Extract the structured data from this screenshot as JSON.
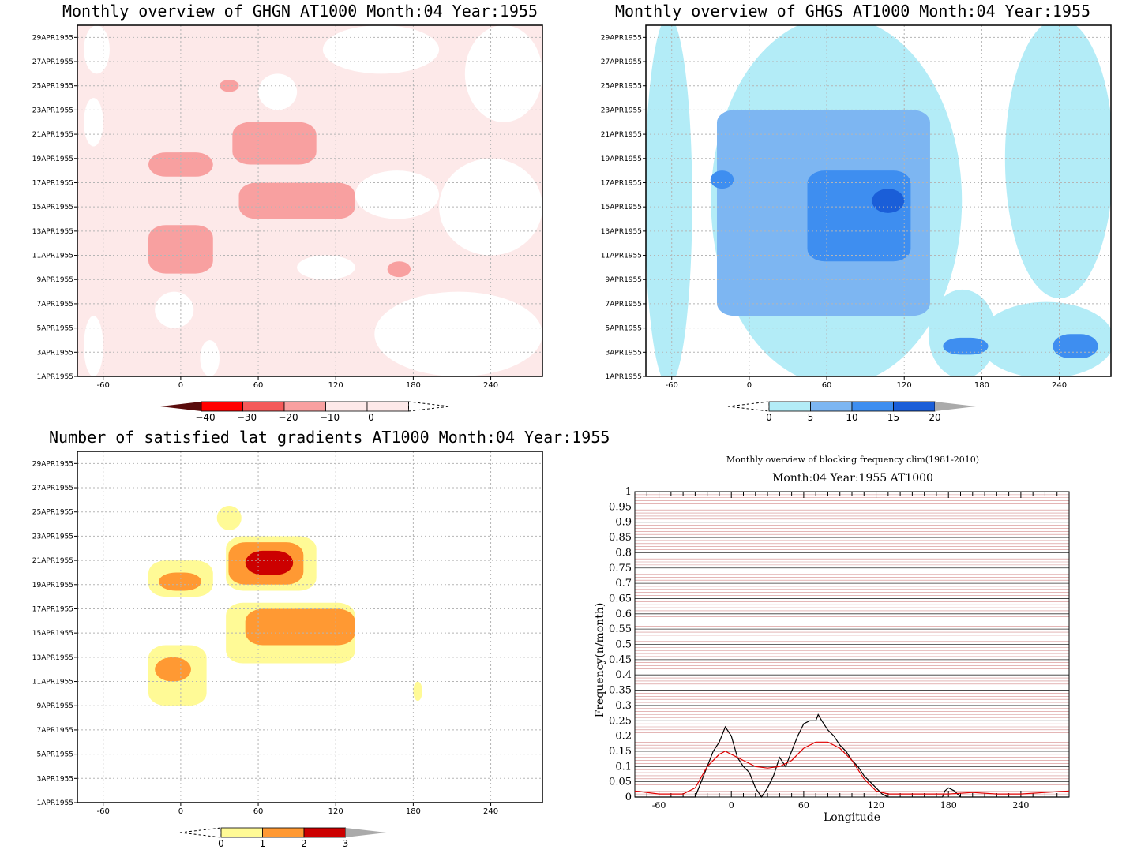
{
  "panels": {
    "ghgn": {
      "title": "Monthly overview of GHGN AT1000 Month:04 Year:1955",
      "colorbar_labels": [
        "−40",
        "−30",
        "−20",
        "−10",
        "0"
      ],
      "colorbar_colors": [
        "#5a0c0c",
        "#ff0000",
        "#f45a5a",
        "#f8a0a0",
        "#fde9e9"
      ]
    },
    "ghgs": {
      "title": "Monthly overview of GHGS AT1000 Month:04 Year:1955",
      "colorbar_labels": [
        "0",
        "5",
        "10",
        "15",
        "20"
      ],
      "colorbar_colors": [
        "#b3ecf7",
        "#7db6f2",
        "#3e8ef0",
        "#1a5ed8",
        "#aaaaaa"
      ]
    },
    "gradients": {
      "title": "Number of satisfied lat gradients AT1000 Month:04 Year:1955",
      "colorbar_labels": [
        "0",
        "1",
        "2",
        "3"
      ],
      "colorbar_colors": [
        "#fffa96",
        "#ff9933",
        "#cc0000",
        "#aaaaaa"
      ]
    },
    "blocking": {
      "title": "Monthly overview of blocking frequency clim(1981-2010)",
      "subtitle": "Month:04 Year:1955  AT1000",
      "xlabel": "Longitude",
      "ylabel": "Frequency(n/month)"
    }
  },
  "map_axes": {
    "y_ticks": [
      "1APR1955",
      "3APR1955",
      "5APR1955",
      "7APR1955",
      "9APR1955",
      "11APR1955",
      "13APR1955",
      "15APR1955",
      "17APR1955",
      "19APR1955",
      "21APR1955",
      "23APR1955",
      "25APR1955",
      "27APR1955",
      "29APR1955"
    ],
    "x_ticks": [
      "-60",
      "0",
      "60",
      "120",
      "180",
      "240"
    ]
  },
  "chart_data": [
    {
      "type": "heatmap",
      "title": "Monthly overview of GHGN AT1000 Month:04 Year:1955",
      "x_ticks": [
        -60,
        0,
        60,
        120,
        180,
        240
      ],
      "y_ticks": [
        "1APR1955",
        "3APR1955",
        "5APR1955",
        "7APR1955",
        "9APR1955",
        "11APR1955",
        "13APR1955",
        "15APR1955",
        "17APR1955",
        "19APR1955",
        "21APR1955",
        "23APR1955",
        "25APR1955",
        "27APR1955",
        "29APR1955"
      ],
      "levels": [
        -40,
        -30,
        -20,
        -10,
        0
      ],
      "colors": [
        "#5a0c0c",
        "#ff0000",
        "#f45a5a",
        "#f8a0a0",
        "#fde9e9"
      ],
      "grid": true,
      "regions": [
        {
          "level": "-10 to 0",
          "lon": [
            -60,
            280
          ],
          "day": [
            1,
            30
          ],
          "note": "light fill over most of domain"
        },
        {
          "level": "-20 to -10",
          "lon": [
            -25,
            25
          ],
          "day": [
            9.5,
            13.5
          ]
        },
        {
          "level": "-20 to -10",
          "lon": [
            -25,
            25
          ],
          "day": [
            17.5,
            19.5
          ]
        },
        {
          "level": "-20 to -10",
          "lon": [
            45,
            135
          ],
          "day": [
            14,
            17
          ]
        },
        {
          "level": "-20 to -10",
          "lon": [
            40,
            105
          ],
          "day": [
            18.5,
            22
          ]
        },
        {
          "level": "-20 to -10",
          "lon": [
            30,
            45
          ],
          "day": [
            24.5,
            25.5
          ]
        },
        {
          "level": "-20 to -10",
          "lon": [
            160,
            178
          ],
          "day": [
            9.2,
            10.5
          ]
        }
      ]
    },
    {
      "type": "heatmap",
      "title": "Monthly overview of GHGS AT1000 Month:04 Year:1955",
      "x_ticks": [
        -60,
        0,
        60,
        120,
        180,
        240
      ],
      "y_ticks": [
        "1APR1955",
        "3APR1955",
        "5APR1955",
        "7APR1955",
        "9APR1955",
        "11APR1955",
        "13APR1955",
        "15APR1955",
        "17APR1955",
        "19APR1955",
        "21APR1955",
        "23APR1955",
        "25APR1955",
        "27APR1955",
        "29APR1955"
      ],
      "levels": [
        0,
        5,
        10,
        15,
        20
      ],
      "colors": [
        "#b3ecf7",
        "#7db6f2",
        "#3e8ef0",
        "#1a5ed8",
        "#aaaaaa"
      ],
      "grid": true,
      "regions": [
        {
          "level": "5 to 10",
          "lon": [
            -25,
            140
          ],
          "day": [
            6,
            23
          ]
        },
        {
          "level": "10 to 15",
          "lon": [
            45,
            125
          ],
          "day": [
            10.5,
            18
          ]
        },
        {
          "level": "15 to 20",
          "lon": [
            95,
            120
          ],
          "day": [
            14.5,
            16.5
          ]
        },
        {
          "level": "10 to 15",
          "lon": [
            150,
            185
          ],
          "day": [
            2.8,
            4.2
          ]
        },
        {
          "level": "10 to 15",
          "lon": [
            235,
            270
          ],
          "day": [
            2.5,
            4.5
          ]
        },
        {
          "level": "10 to 15",
          "lon": [
            -30,
            -12
          ],
          "day": [
            16.5,
            18
          ]
        }
      ]
    },
    {
      "type": "heatmap",
      "title": "Number of satisfied lat gradients AT1000 Month:04 Year:1955",
      "x_ticks": [
        -60,
        0,
        60,
        120,
        180,
        240
      ],
      "y_ticks": [
        "1APR1955",
        "3APR1955",
        "5APR1955",
        "7APR1955",
        "9APR1955",
        "11APR1955",
        "13APR1955",
        "15APR1955",
        "17APR1955",
        "19APR1955",
        "21APR1955",
        "23APR1955",
        "25APR1955",
        "27APR1955",
        "29APR1955"
      ],
      "levels": [
        0,
        1,
        2,
        3
      ],
      "colors": [
        "#fffa96",
        "#ff9933",
        "#cc0000",
        "#aaaaaa"
      ],
      "grid": true,
      "regions": [
        {
          "level": "0 to 1",
          "lon": [
            -25,
            20
          ],
          "day": [
            9,
            14
          ]
        },
        {
          "level": "1 to 2",
          "lon": [
            -20,
            8
          ],
          "day": [
            11,
            13
          ]
        },
        {
          "level": "0 to 1",
          "lon": [
            -25,
            25
          ],
          "day": [
            18,
            21
          ]
        },
        {
          "level": "1 to 2",
          "lon": [
            -17,
            16
          ],
          "day": [
            18.5,
            20
          ]
        },
        {
          "level": "0 to 1",
          "lon": [
            35,
            105
          ],
          "day": [
            18.5,
            23
          ]
        },
        {
          "level": "1 to 2",
          "lon": [
            37,
            95
          ],
          "day": [
            19,
            22.5
          ]
        },
        {
          "level": "2 to 3",
          "lon": [
            50,
            87
          ],
          "day": [
            19.8,
            21.8
          ]
        },
        {
          "level": "0 to 1",
          "lon": [
            35,
            135
          ],
          "day": [
            12.5,
            17.5
          ]
        },
        {
          "level": "1 to 2",
          "lon": [
            50,
            135
          ],
          "day": [
            14,
            17
          ]
        },
        {
          "level": "0 to 1",
          "lon": [
            28,
            47
          ],
          "day": [
            23.5,
            25.5
          ]
        },
        {
          "level": "0 to 1",
          "lon": [
            180,
            187
          ],
          "day": [
            9.4,
            11
          ]
        }
      ]
    },
    {
      "type": "line",
      "title": "Monthly overview of blocking frequency clim(1981-2010)",
      "subtitle": "Month:04 Year:1955  AT1000",
      "xlabel": "Longitude",
      "ylabel": "Frequency(n/month)",
      "xlim": [
        -80,
        280
      ],
      "ylim": [
        0,
        1
      ],
      "x_ticks": [
        -60,
        0,
        60,
        120,
        180,
        240
      ],
      "y_ticks": [
        0,
        0.05,
        0.1,
        0.15,
        0.2,
        0.25,
        0.3,
        0.35,
        0.4,
        0.45,
        0.5,
        0.55,
        0.6,
        0.65,
        0.7,
        0.75,
        0.8,
        0.85,
        0.9,
        0.95,
        1
      ],
      "series": [
        {
          "color": "#000000",
          "x": [
            -80,
            -40,
            -30,
            -25,
            -20,
            -15,
            -10,
            -5,
            0,
            5,
            10,
            15,
            20,
            25,
            30,
            35,
            40,
            45,
            50,
            55,
            60,
            65,
            70,
            72,
            75,
            80,
            85,
            90,
            95,
            100,
            105,
            110,
            115,
            120,
            125,
            130,
            135,
            140,
            175,
            177,
            180,
            185,
            190,
            280
          ],
          "y": [
            0,
            0,
            0,
            0.05,
            0.1,
            0.15,
            0.18,
            0.23,
            0.2,
            0.13,
            0.1,
            0.08,
            0.03,
            0,
            0.03,
            0.07,
            0.13,
            0.1,
            0.15,
            0.2,
            0.24,
            0.25,
            0.25,
            0.27,
            0.25,
            0.22,
            0.2,
            0.17,
            0.15,
            0.12,
            0.1,
            0.07,
            0.05,
            0.03,
            0.01,
            0,
            0,
            0,
            0,
            0.02,
            0.03,
            0.02,
            0,
            0
          ]
        },
        {
          "color": "#e00000",
          "x": [
            -80,
            -60,
            -40,
            -30,
            -20,
            -10,
            -5,
            0,
            10,
            20,
            30,
            40,
            50,
            60,
            70,
            80,
            90,
            100,
            110,
            120,
            130,
            140,
            160,
            180,
            200,
            220,
            240,
            260,
            280
          ],
          "y": [
            0.02,
            0.01,
            0.01,
            0.03,
            0.1,
            0.14,
            0.15,
            0.14,
            0.12,
            0.1,
            0.095,
            0.1,
            0.12,
            0.16,
            0.18,
            0.18,
            0.16,
            0.12,
            0.06,
            0.02,
            0.01,
            0.01,
            0.01,
            0.01,
            0.015,
            0.01,
            0.01,
            0.015,
            0.02
          ]
        }
      ]
    }
  ]
}
